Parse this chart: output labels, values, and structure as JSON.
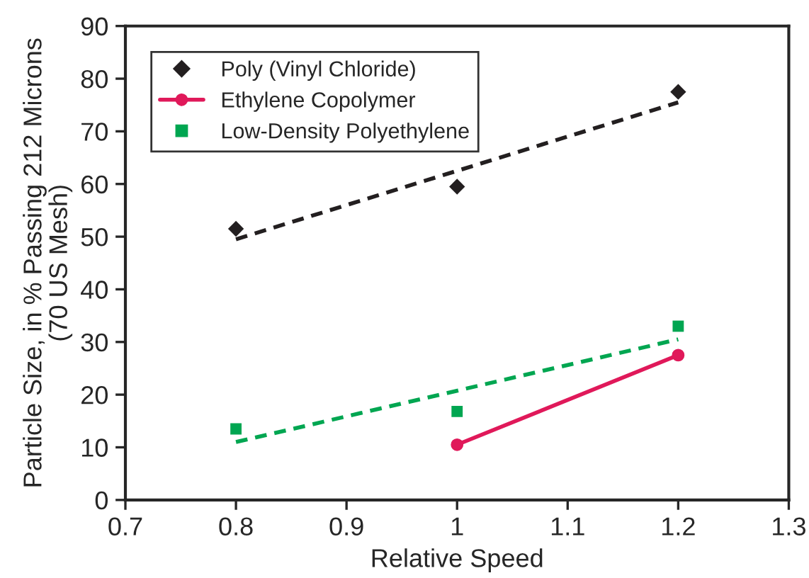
{
  "chart_data": {
    "type": "scatter",
    "xlabel": "Relative Speed",
    "ylabel": "Particle Size, in % Passing 212 Microns\n(70 US Mesh)",
    "x": [
      0.8,
      1.0,
      1.2
    ],
    "series": [
      {
        "name": "Poly (Vinyl Chloride)",
        "color": "#231f20",
        "marker": "diamond",
        "values": [
          51.5,
          59.5,
          77.5
        ]
      },
      {
        "name": "Ethylene Copolymer",
        "type": "line",
        "color": "#e0195a",
        "marker": "circle",
        "line_style": "solid",
        "x": [
          1.0,
          1.2
        ],
        "values": [
          10.5,
          27.5
        ]
      },
      {
        "name": "Low-Density Polyethylene",
        "color": "#00a651",
        "marker": "square",
        "values": [
          13.5,
          16.8,
          33
        ]
      },
      {
        "type": "line",
        "color": "#231f20",
        "marker": "none",
        "line_style": "dashed",
        "x": [
          0.8,
          1.2
        ],
        "values": [
          49.5,
          75.5
        ]
      },
      {
        "type": "line",
        "color": "#00a651",
        "marker": "none",
        "line_style": "dashed",
        "x": [
          0.8,
          1.2
        ],
        "values": [
          11,
          30.5
        ]
      }
    ],
    "xlim": [
      0.7,
      1.3
    ],
    "xticks": [
      0.7,
      0.8,
      0.9,
      1,
      1.1,
      1.2,
      1.3
    ],
    "ylim": [
      0,
      90
    ],
    "yticks": [
      0,
      10,
      20,
      30,
      40,
      50,
      60,
      70,
      80,
      90
    ],
    "grid": false,
    "legend": "top left"
  }
}
